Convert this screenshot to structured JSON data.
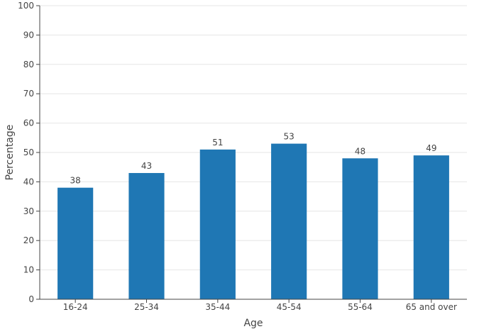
{
  "chart_data": {
    "type": "bar",
    "title": "",
    "xlabel": "Age",
    "ylabel": "Percentage",
    "categories": [
      "16-24",
      "25-34",
      "35-44",
      "45-54",
      "55-64",
      "65 and over"
    ],
    "values": [
      38,
      43,
      51,
      53,
      48,
      49
    ],
    "data_labels": [
      "38",
      "43",
      "51",
      "53",
      "48",
      "49"
    ],
    "ylim": [
      0,
      100
    ],
    "yticks": [
      0,
      10,
      20,
      30,
      40,
      50,
      60,
      70,
      80,
      90,
      100
    ],
    "ytick_labels": [
      "0",
      "10",
      "20",
      "30",
      "40",
      "50",
      "60",
      "70",
      "80",
      "90",
      "100"
    ],
    "grid": true,
    "legend": "none",
    "colors": {
      "bar": "#1f77b4",
      "grid": "#e6e6e6",
      "axis": "#444444"
    }
  }
}
